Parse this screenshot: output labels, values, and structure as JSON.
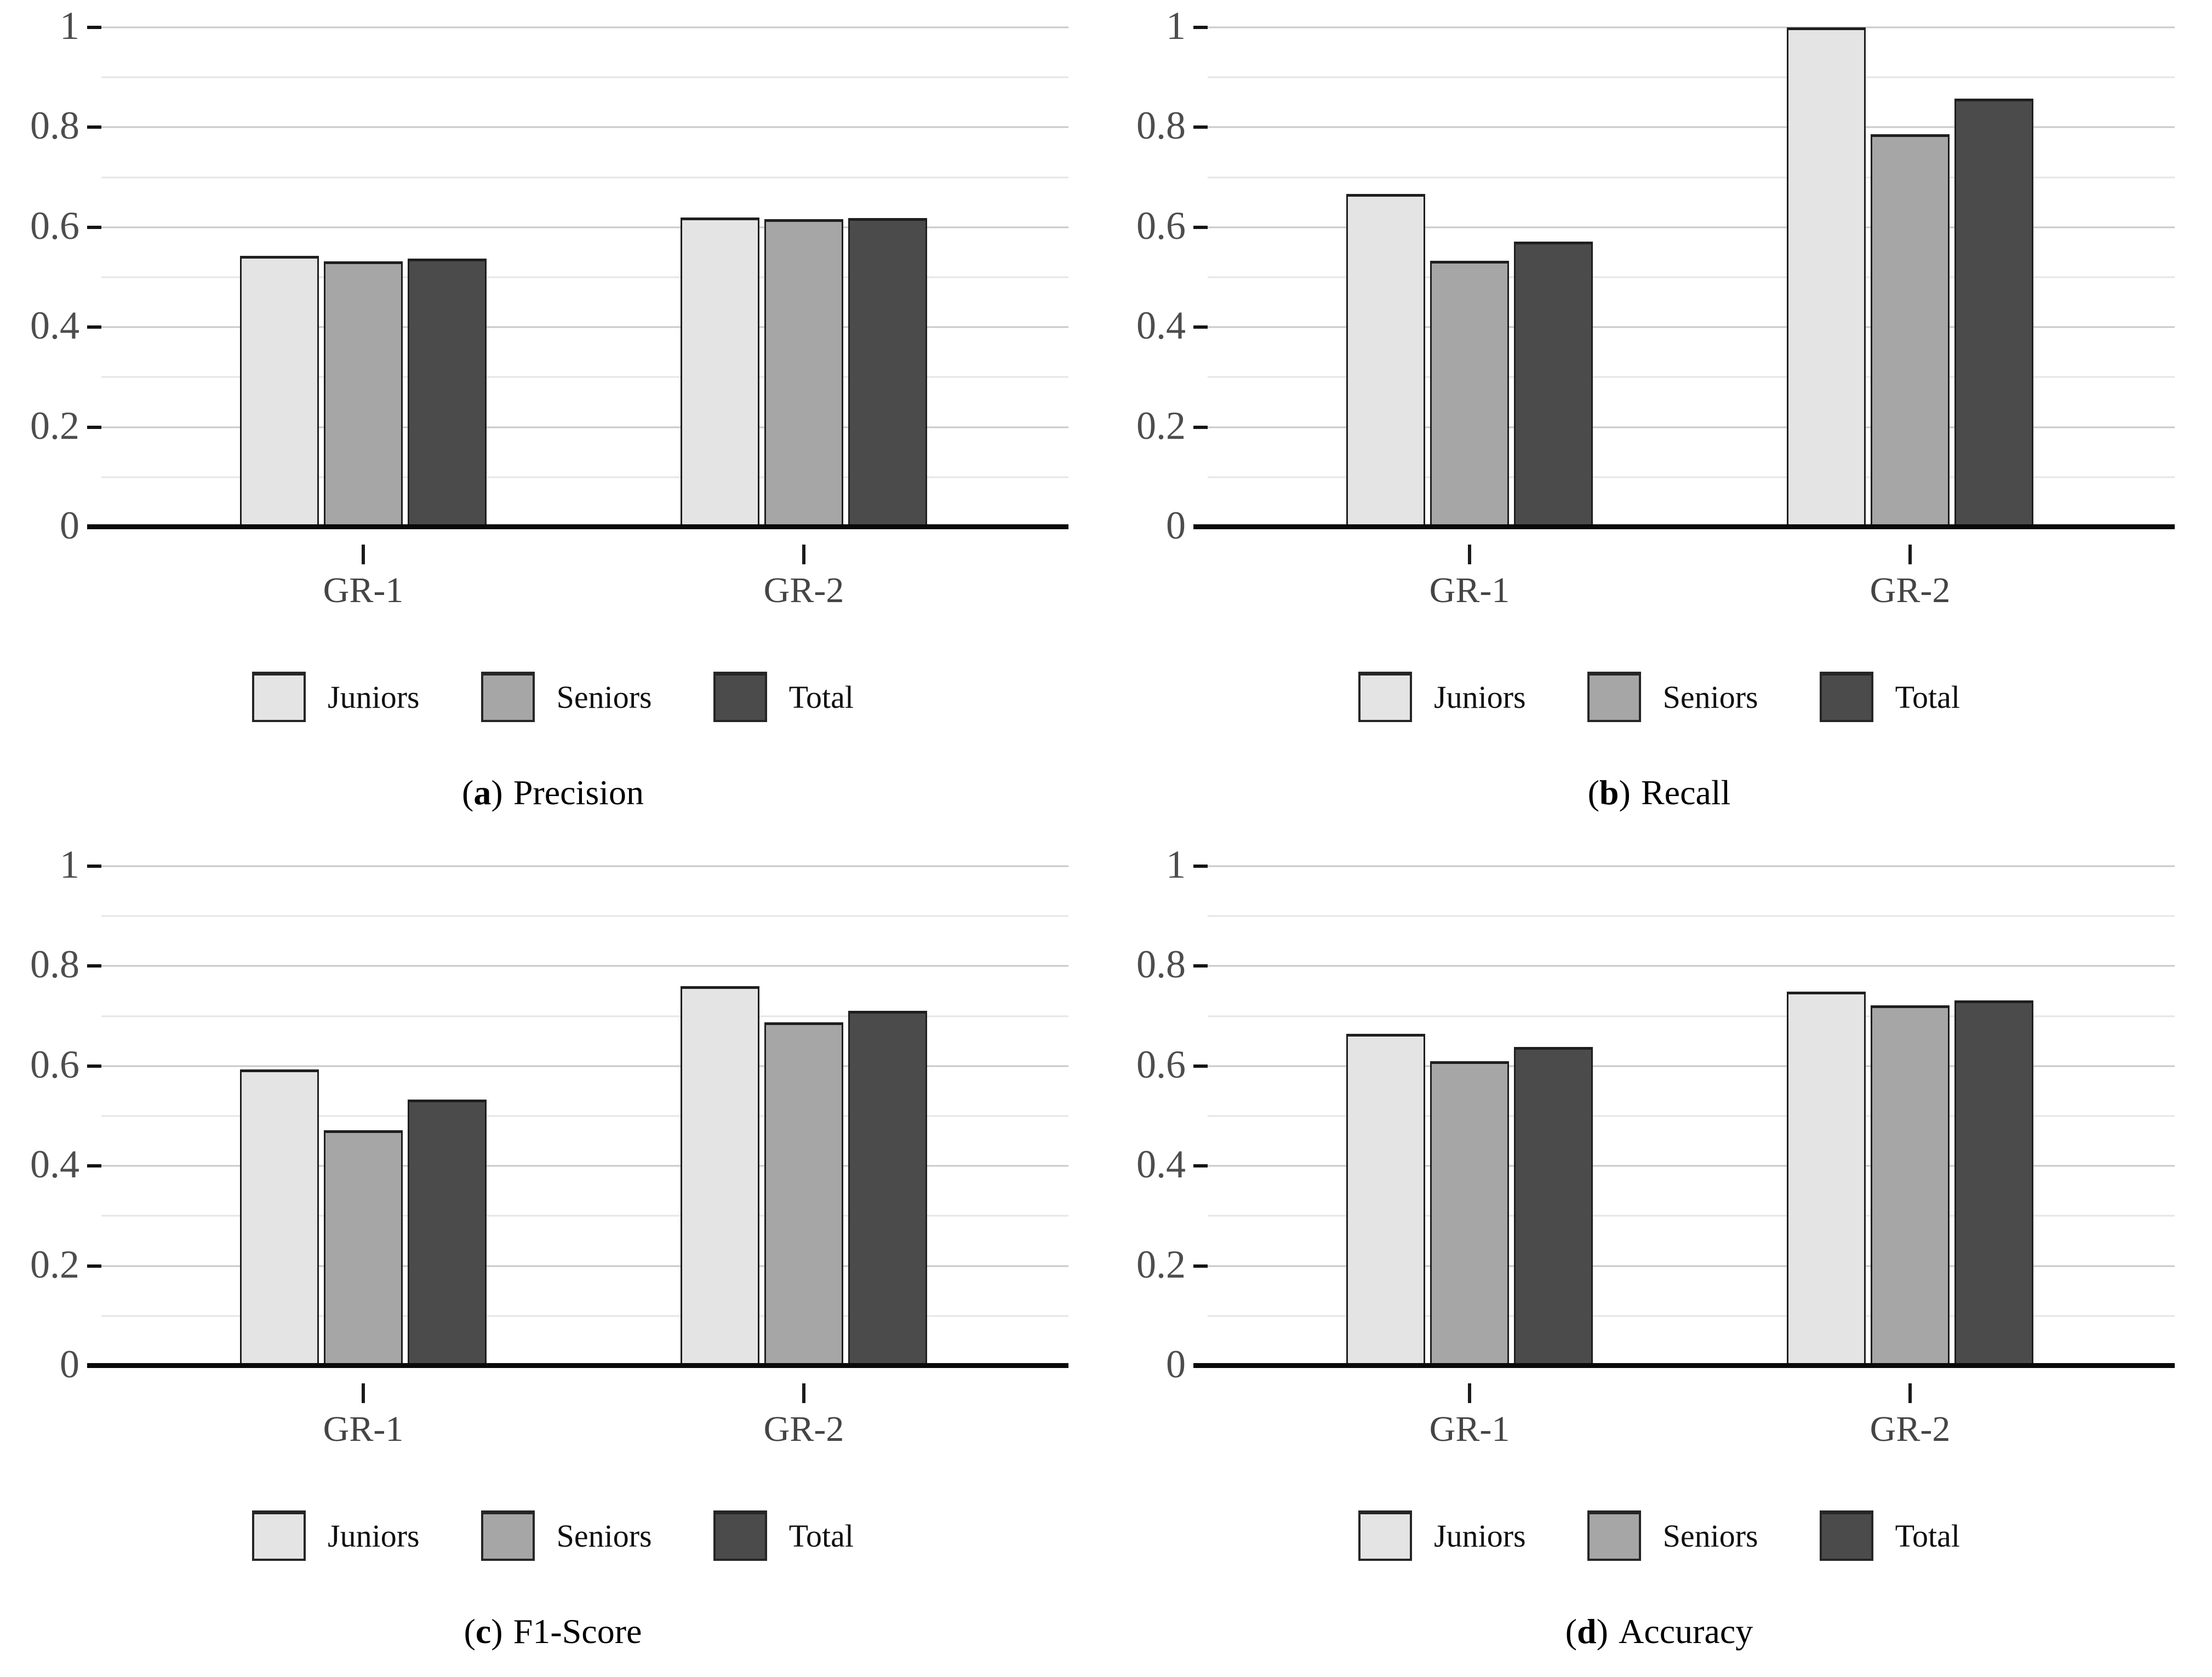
{
  "figure": {
    "description": "Four grouped bar charts comparing Juniors, Seniors and Total across groups GR-1 and GR-2",
    "series_labels": [
      "Juniors",
      "Seniors",
      "Total"
    ],
    "series_colors": [
      "#e4e4e4",
      "#a6a6a6",
      "#4b4b4b"
    ],
    "bar_border_color": "#1f1f1f",
    "axis_color": "#0a0a0a",
    "major_grid_color": "#c9c9c9",
    "minor_grid_color": "#e6e6e6",
    "y_tick_labels": [
      "0",
      "0.2",
      "0.4",
      "0.6",
      "0.8",
      "1"
    ],
    "y_major_ticks": [
      0,
      0.2,
      0.4,
      0.6,
      0.8,
      1
    ],
    "y_minor_ticks": [
      0.1,
      0.3,
      0.5,
      0.7,
      0.9
    ],
    "caption_open": "(",
    "caption_close": ")"
  },
  "chart_data": [
    {
      "type": "bar",
      "panel_letter": "a",
      "title": "Precision",
      "categories": [
        "GR-1",
        "GR-2"
      ],
      "series": [
        {
          "name": "Juniors",
          "values": [
            0.543,
            0.62
          ]
        },
        {
          "name": "Seniors",
          "values": [
            0.532,
            0.616
          ]
        },
        {
          "name": "Total",
          "values": [
            0.537,
            0.618
          ]
        }
      ],
      "ylim": [
        0,
        1
      ],
      "grid": "horizontal",
      "legend_position": "bottom"
    },
    {
      "type": "bar",
      "panel_letter": "b",
      "title": "Recall",
      "categories": [
        "GR-1",
        "GR-2"
      ],
      "series": [
        {
          "name": "Juniors",
          "values": [
            0.667,
            1.0
          ]
        },
        {
          "name": "Seniors",
          "values": [
            0.533,
            0.786
          ]
        },
        {
          "name": "Total",
          "values": [
            0.571,
            0.857
          ]
        }
      ],
      "ylim": [
        0,
        1
      ],
      "grid": "horizontal",
      "legend_position": "bottom"
    },
    {
      "type": "bar",
      "panel_letter": "c",
      "title": "F1-Score",
      "categories": [
        "GR-1",
        "GR-2"
      ],
      "series": [
        {
          "name": "Juniors",
          "values": [
            0.593,
            0.76
          ]
        },
        {
          "name": "Seniors",
          "values": [
            0.472,
            0.687
          ]
        },
        {
          "name": "Total",
          "values": [
            0.533,
            0.71
          ]
        }
      ],
      "ylim": [
        0,
        1
      ],
      "grid": "horizontal",
      "legend_position": "bottom"
    },
    {
      "type": "bar",
      "panel_letter": "d",
      "title": "Accuracy",
      "categories": [
        "GR-1",
        "GR-2"
      ],
      "series": [
        {
          "name": "Juniors",
          "values": [
            0.665,
            0.749
          ]
        },
        {
          "name": "Seniors",
          "values": [
            0.61,
            0.722
          ]
        },
        {
          "name": "Total",
          "values": [
            0.638,
            0.731
          ]
        }
      ],
      "ylim": [
        0,
        1
      ],
      "grid": "horizontal",
      "legend_position": "bottom"
    }
  ]
}
